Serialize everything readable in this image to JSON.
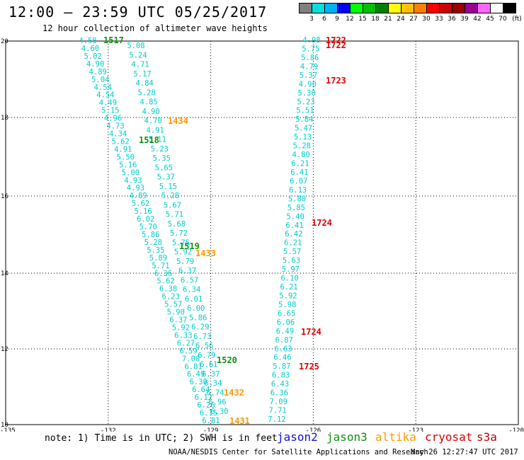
{
  "title": "12:00 – 23:59 UTC 05/25/2017",
  "subtitle": "12 hour collection of altimeter wave heights",
  "note": "note: 1) Time is in UTC; 2) SWH is in feet",
  "satellites": [
    {
      "name": "jason2",
      "color": "#1010e0"
    },
    {
      "name": "jason3",
      "color": "#109010"
    },
    {
      "name": "altika",
      "color": "#ff9900"
    },
    {
      "name": "cryosat",
      "color": "#e00000"
    },
    {
      "name": "s3a",
      "color": "#c00000"
    }
  ],
  "credit": "NOAA/NESDIS Center for Satellite Applications and Research",
  "stamp": "May 26 12:27:47 UTC 2017",
  "colorscale": {
    "unit": "(ft)",
    "labels": [
      "3",
      "6",
      "9",
      "12",
      "15",
      "18",
      "21",
      "24",
      "27",
      "30",
      "33",
      "36",
      "39",
      "42",
      "45",
      "70"
    ],
    "colors": [
      "#808080",
      "#00e0e0",
      "#00b0ff",
      "#0000ff",
      "#00ff00",
      "#00c000",
      "#008000",
      "#ffff00",
      "#ffc000",
      "#ff8000",
      "#ff0000",
      "#cc0000",
      "#990000",
      "#990099",
      "#ff66ff",
      "#ffffff",
      "#000000"
    ]
  },
  "map": {
    "x_ticks": [
      "-135",
      "-132",
      "-129",
      "-126",
      "-123",
      "-120"
    ],
    "y_ticks": [
      "20",
      "18",
      "16",
      "14",
      "12",
      "10"
    ],
    "swh_color": "#00cccc"
  },
  "tracks": {
    "A": [
      "4.58",
      "4.60",
      "5.02",
      "4.90",
      "4.89",
      "5.04",
      "4.54",
      "4.54",
      "4.49",
      "5.15",
      "4.96",
      "4.73",
      "4.34",
      "5.62",
      "4.91",
      "5.50",
      "5.16",
      "5.00",
      "4.93",
      "4.93",
      "4.89",
      "5.62",
      "5.16",
      "6.02",
      "5.70",
      "5.86",
      "5.28",
      "5.35",
      "5.89",
      "5.71",
      "6.36",
      "5.62",
      "6.38",
      "6.23",
      "5.57",
      "5.90",
      "6.37",
      "5.92",
      "6.33",
      "6.27",
      "6.59",
      "7.00",
      "6.81",
      "6.49",
      "6.30",
      "6.64",
      "6.12",
      "6.26",
      "6.15",
      "6.81"
    ],
    "B": [
      "5.08",
      "5.24",
      "4.71",
      "5.17",
      "4.84",
      "5.28",
      "4.85",
      "4.90",
      "4.70",
      "4.91",
      "5.11",
      "5.23",
      "5.35",
      "5.65",
      "5.37",
      "5.15",
      "5.28",
      "5.67",
      "5.71",
      "5.68",
      "5.72",
      "5.75",
      "5.92",
      "5.79",
      "6.37",
      "6.57",
      "6.34",
      "6.01",
      "6.00",
      "5.86",
      "6.29",
      "6.73",
      "6.56",
      "6.79",
      "6.61",
      "6.37",
      "6.34",
      "6.74",
      "6.96",
      "6.30"
    ],
    "C": [
      "4.98",
      "5.75",
      "5.86",
      "4.79",
      "5.37",
      "4.90",
      "5.30",
      "5.23",
      "5.51",
      "5.84",
      "5.47",
      "5.13",
      "5.28",
      "4.80",
      "6.21",
      "6.41",
      "6.07",
      "6.13",
      "5.80",
      "5.85",
      "5.40",
      "6.41",
      "6.42",
      "6.21",
      "5.57",
      "5.63",
      "5.97",
      "6.10",
      "6.21",
      "5.92",
      "5.98",
      "6.65",
      "6.06",
      "6.49",
      "6.87",
      "6.63",
      "6.46",
      "5.87",
      "6.83",
      "6.43",
      "6.36",
      "7.09",
      "7.71",
      "7.12"
    ],
    "times": [
      {
        "text": "1517",
        "sat": "jason3"
      },
      {
        "text": "1518",
        "sat": "jason3"
      },
      {
        "text": "1519",
        "sat": "jason3"
      },
      {
        "text": "1520",
        "sat": "jason3"
      },
      {
        "text": "1434",
        "sat": "altika"
      },
      {
        "text": "1433",
        "sat": "altika"
      },
      {
        "text": "1432",
        "sat": "altika"
      },
      {
        "text": "1431",
        "sat": "altika"
      },
      {
        "text": "1722",
        "sat": "cryosat"
      },
      {
        "text": "1722",
        "sat": "cryosat"
      },
      {
        "text": "1723",
        "sat": "cryosat"
      },
      {
        "text": "1724",
        "sat": "cryosat"
      },
      {
        "text": "1724",
        "sat": "cryosat"
      },
      {
        "text": "1725",
        "sat": "cryosat"
      }
    ]
  }
}
